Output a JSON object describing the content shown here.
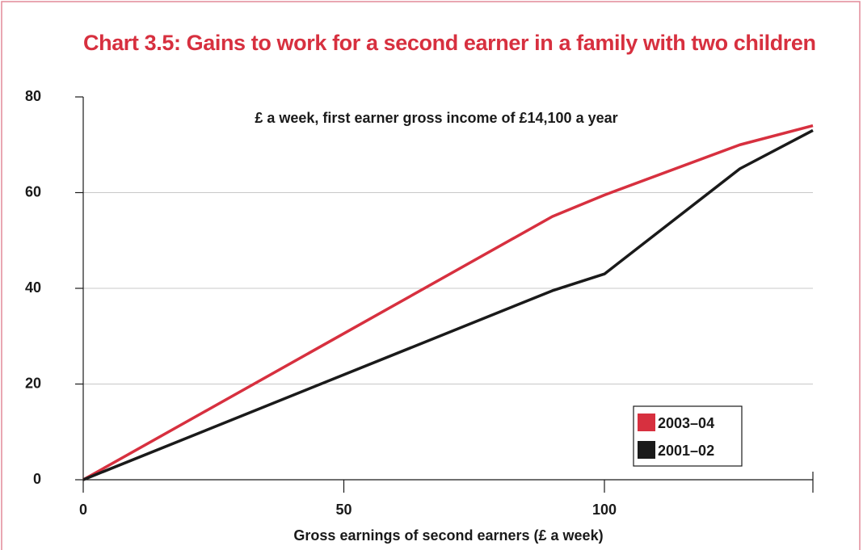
{
  "chart_data": {
    "type": "line",
    "title": "Chart 3.5: Gains to work for a second earner in a family with two children",
    "subtitle": "£ a week, first earner gross income of £14,100 a year",
    "x_label": "Gross earnings of second earners (£ a week)",
    "x": [
      0,
      90,
      100,
      126,
      140
    ],
    "series": [
      {
        "name": "2003–04",
        "color": "#d7303f",
        "values": [
          0,
          55,
          59.5,
          70,
          74
        ]
      },
      {
        "name": "2001–02",
        "color": "#1a1a1a",
        "values": [
          0,
          39.5,
          43,
          65,
          73
        ]
      }
    ],
    "xlim": [
      0,
      140
    ],
    "xticks": [
      0,
      50,
      100
    ],
    "ylim": [
      0,
      80
    ],
    "yticks": [
      0,
      20,
      40,
      60,
      80
    ],
    "grid": true,
    "legend": "lower right"
  }
}
